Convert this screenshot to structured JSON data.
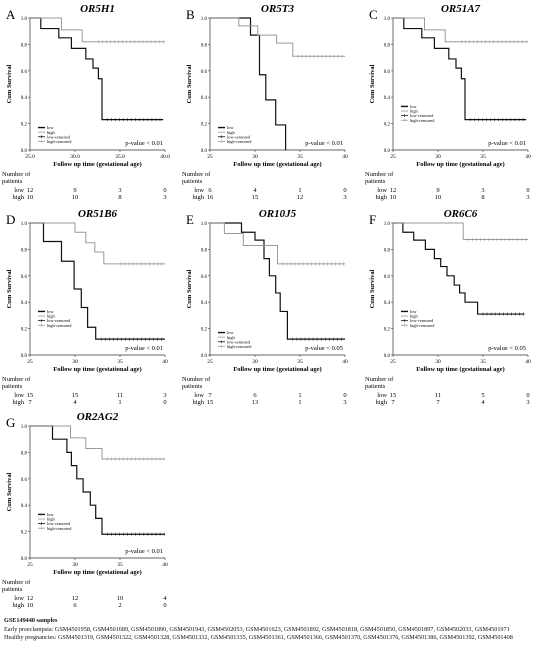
{
  "ylabel": "Cum Survival",
  "xlabel": "Follow up time (gestational age)",
  "risk_header": [
    "Number of",
    "patients"
  ],
  "risk_rows": [
    "low",
    "high"
  ],
  "legend_labels": [
    "low",
    "high",
    "low-censored",
    "high-censored"
  ],
  "ytick_labels": [
    "0.0",
    "0.2",
    "0.4",
    "0.6",
    "0.8",
    "1.0"
  ],
  "footer": {
    "title": "GSE149440 samples",
    "early": "Early preeclampsia: GSM4501958, GSM4501689, GSM4501890, GSM4501943, GSM4502053, GSM4501623, GSM4501892, GSM4501818, GSM4501850, GSM4501897, GSM4502033, GSM4501971",
    "healthy": "Healthy pregnancies: GSM4501319, GSM4501322, GSM4501328, GSM4501332, GSM4501335, GSM4501361, GSM4501366, GSM4501370, GSM4501376, GSM4501386, GSM4501392, GSM4501408"
  },
  "colors": {
    "low": "#111111",
    "high": "#9a9a9a",
    "axis": "#333333"
  },
  "chart_data": [
    {
      "panel": "A",
      "title": "OR5H1",
      "type": "line",
      "xlim": [
        25,
        40
      ],
      "xticks": [
        25.0,
        30.0,
        35.0,
        40.0
      ],
      "xtick_labels": [
        "25.0",
        "30.0",
        "35.0",
        "40.0"
      ],
      "ylim": [
        0,
        1
      ],
      "pvalue": "p-value < 0.01",
      "legend": "bottom-left",
      "series": [
        {
          "name": "low",
          "x": [
            25.0,
            26.2,
            28.2,
            29.6,
            31.2,
            32.0,
            32.6,
            33.0,
            39.8
          ],
          "y": [
            1.0,
            0.92,
            0.85,
            0.77,
            0.69,
            0.62,
            0.54,
            0.23,
            0.23
          ]
        },
        {
          "name": "high",
          "x": [
            25.0,
            28.5,
            30.8,
            32.0,
            40.0
          ],
          "y": [
            1.0,
            0.91,
            0.82,
            0.82,
            0.82
          ]
        }
      ],
      "risk_times": [
        25,
        30,
        35,
        40
      ],
      "risk_low": [
        12,
        9,
        3,
        0
      ],
      "risk_high": [
        10,
        10,
        8,
        3
      ]
    },
    {
      "panel": "B",
      "title": "OR5T3",
      "type": "line",
      "xlim": [
        25,
        40
      ],
      "xticks": [
        25,
        30,
        35,
        40
      ],
      "xtick_labels": [
        "25",
        "30",
        "35",
        "40"
      ],
      "ylim": [
        0,
        1
      ],
      "pvalue": "p-value < 0.01",
      "legend": "bottom-left",
      "series": [
        {
          "name": "low",
          "x": [
            25.0,
            29.5,
            30.5,
            31.2,
            32.3,
            33.4
          ],
          "y": [
            1.0,
            0.87,
            0.57,
            0.38,
            0.19,
            0.0
          ]
        },
        {
          "name": "high",
          "x": [
            25.0,
            28.2,
            30.3,
            32.4,
            34.2,
            40.0
          ],
          "y": [
            1.0,
            0.94,
            0.87,
            0.81,
            0.71,
            0.71
          ]
        }
      ],
      "risk_times": [
        25,
        30,
        35,
        40
      ],
      "risk_low": [
        6,
        4,
        1,
        0
      ],
      "risk_high": [
        16,
        15,
        12,
        3
      ]
    },
    {
      "panel": "C",
      "title": "OR51A7",
      "type": "line",
      "xlim": [
        25,
        40
      ],
      "xticks": [
        25,
        30,
        35,
        40
      ],
      "xtick_labels": [
        "25",
        "30",
        "35",
        "40"
      ],
      "ylim": [
        0,
        1
      ],
      "pvalue": "p-value < 0.01",
      "legend": "top-left",
      "series": [
        {
          "name": "low",
          "x": [
            25.0,
            26.2,
            28.2,
            29.6,
            31.2,
            32.0,
            32.6,
            33.0,
            39.8
          ],
          "y": [
            1.0,
            0.92,
            0.85,
            0.77,
            0.69,
            0.62,
            0.54,
            0.23,
            0.23
          ]
        },
        {
          "name": "high",
          "x": [
            25.0,
            28.5,
            30.8,
            32.0,
            40.0
          ],
          "y": [
            1.0,
            0.91,
            0.82,
            0.82,
            0.82
          ]
        }
      ],
      "risk_times": [
        25,
        30,
        35,
        40
      ],
      "risk_low": [
        12,
        9,
        3,
        0
      ],
      "risk_high": [
        10,
        10,
        8,
        3
      ]
    },
    {
      "panel": "D",
      "title": "OR51B6",
      "type": "line",
      "xlim": [
        25,
        40
      ],
      "xticks": [
        25,
        30,
        35,
        40
      ],
      "xtick_labels": [
        "25",
        "30",
        "35",
        "40"
      ],
      "ylim": [
        0,
        1
      ],
      "pvalue": "p-value < 0.01",
      "legend": "top-left",
      "series": [
        {
          "name": "low",
          "x": [
            25.0,
            26.5,
            28.5,
            29.9,
            30.7,
            31.4,
            32.3,
            40.0
          ],
          "y": [
            1.0,
            0.86,
            0.71,
            0.5,
            0.36,
            0.21,
            0.12,
            0.12
          ]
        },
        {
          "name": "high",
          "x": [
            25.0,
            30.0,
            31.2,
            32.2,
            33.2,
            34.5,
            40.0
          ],
          "y": [
            1.0,
            0.93,
            0.85,
            0.78,
            0.69,
            0.69,
            0.69
          ]
        }
      ],
      "risk_times": [
        25,
        30,
        35,
        40
      ],
      "risk_low": [
        15,
        15,
        11,
        3
      ],
      "risk_high": [
        7,
        4,
        1,
        0
      ]
    },
    {
      "panel": "E",
      "title": "OR10J5",
      "type": "line",
      "xlim": [
        25,
        40
      ],
      "xticks": [
        25,
        30,
        35,
        40
      ],
      "xtick_labels": [
        "25",
        "30",
        "35",
        "40"
      ],
      "ylim": [
        0,
        1
      ],
      "pvalue": "p-value < 0.05",
      "legend": "bottom-left",
      "series": [
        {
          "name": "low",
          "x": [
            25.0,
            28.5,
            30.0,
            31.0,
            31.6,
            32.3,
            32.8,
            33.6,
            40.0
          ],
          "y": [
            1.0,
            0.93,
            0.87,
            0.73,
            0.6,
            0.47,
            0.33,
            0.12,
            0.12
          ]
        },
        {
          "name": "high",
          "x": [
            25.0,
            26.6,
            28.7,
            32.5,
            40.0
          ],
          "y": [
            1.0,
            0.92,
            0.83,
            0.69,
            0.69
          ]
        }
      ],
      "risk_times": [
        25,
        30,
        35,
        40
      ],
      "risk_low": [
        7,
        6,
        1,
        0
      ],
      "risk_high": [
        15,
        13,
        1,
        3
      ]
    },
    {
      "panel": "F",
      "title": "OR6C6",
      "type": "line",
      "xlim": [
        25,
        40
      ],
      "xticks": [
        25,
        30,
        35,
        40
      ],
      "xtick_labels": [
        "25",
        "30",
        "35",
        "40"
      ],
      "ylim": [
        0,
        1
      ],
      "pvalue": "p-value < 0.05",
      "legend": "top-left",
      "series": [
        {
          "name": "low",
          "x": [
            25.0,
            26.1,
            27.3,
            28.6,
            29.6,
            30.3,
            31.0,
            31.8,
            32.4,
            33.0,
            34.4,
            39.6
          ],
          "y": [
            1.0,
            0.93,
            0.87,
            0.8,
            0.73,
            0.67,
            0.6,
            0.53,
            0.47,
            0.4,
            0.31,
            0.31
          ]
        },
        {
          "name": "high",
          "x": [
            25.0,
            32.8,
            40.0
          ],
          "y": [
            1.0,
            0.875,
            0.875
          ]
        }
      ],
      "risk_times": [
        25,
        30,
        35,
        40
      ],
      "risk_low": [
        15,
        11,
        5,
        0
      ],
      "risk_high": [
        7,
        7,
        4,
        3
      ]
    },
    {
      "panel": "G",
      "title": "OR2AG2",
      "type": "line",
      "xlim": [
        25,
        40
      ],
      "xticks": [
        25,
        30,
        35,
        40
      ],
      "xtick_labels": [
        "25",
        "30",
        "35",
        "40"
      ],
      "ylim": [
        0,
        1
      ],
      "pvalue": "p-value < 0.01",
      "legend": "top-left",
      "series": [
        {
          "name": "low",
          "x": [
            25.0,
            27.5,
            29.1,
            29.6,
            30.2,
            30.9,
            31.7,
            32.3,
            33.0,
            40.0
          ],
          "y": [
            1.0,
            0.9,
            0.8,
            0.7,
            0.6,
            0.5,
            0.4,
            0.3,
            0.18,
            0.18
          ]
        },
        {
          "name": "high",
          "x": [
            25.0,
            29.5,
            31.2,
            33.0,
            40.0
          ],
          "y": [
            1.0,
            0.91,
            0.83,
            0.75,
            0.75
          ]
        }
      ],
      "risk_times": [
        25,
        30,
        35,
        40
      ],
      "risk_low": [
        12,
        12,
        10,
        4
      ],
      "risk_high": [
        10,
        6,
        2,
        0
      ]
    }
  ]
}
